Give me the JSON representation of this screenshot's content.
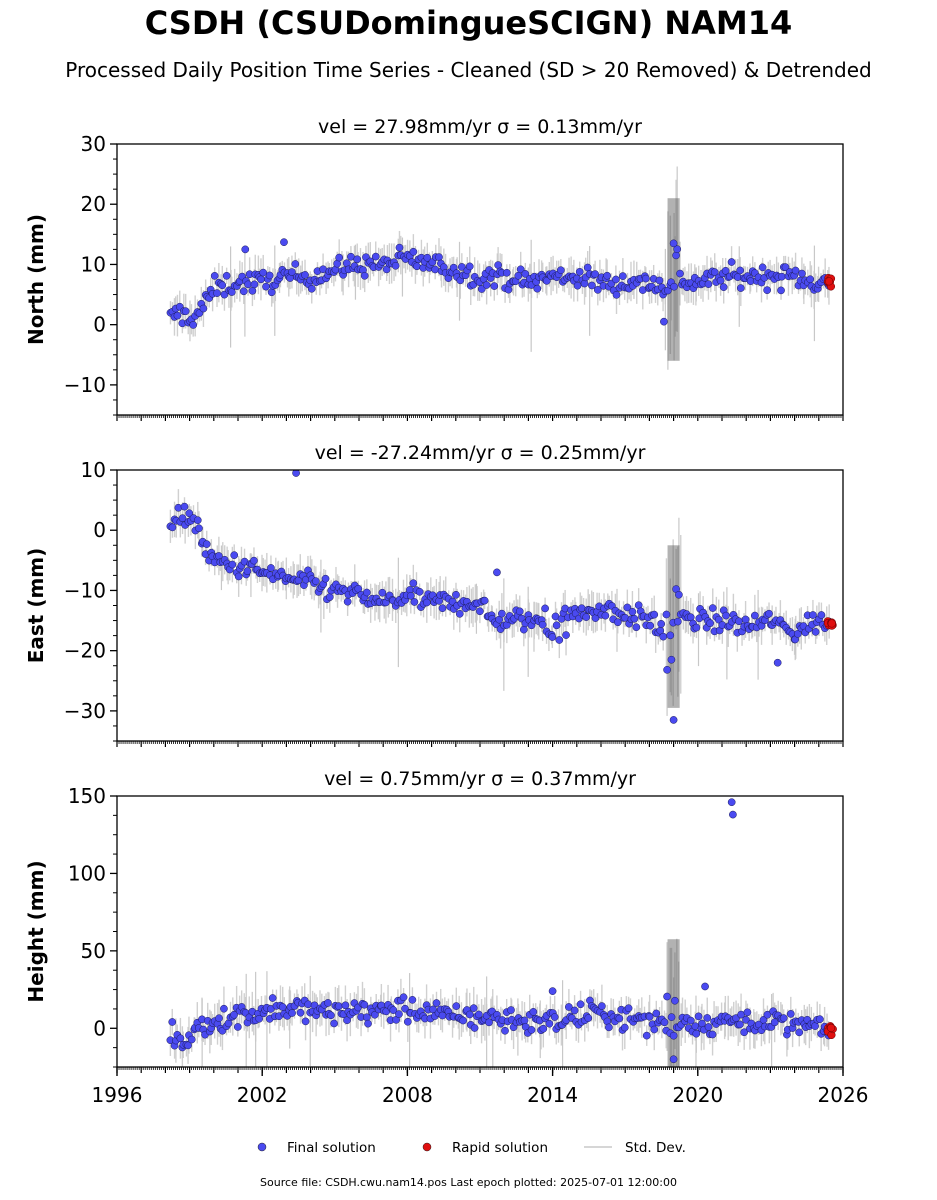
{
  "header": {
    "title": "CSDH (CSUDomingueSCIGN) NAM14",
    "subtitle": "Processed Daily Position Time Series - Cleaned (SD > 20 Removed) & Detrended"
  },
  "footer": {
    "source": "Source file: CSDH.cwu.nam14.pos  Last epoch plotted: 2025-07-01 12:00:00"
  },
  "legend": {
    "placement": "bottom-center",
    "items": [
      {
        "label": "Final solution",
        "color": "#4a4af0",
        "kind": "dot"
      },
      {
        "label": "Rapid solution",
        "color": "#e01010",
        "kind": "dot"
      },
      {
        "label": "Std. Dev.",
        "color": "#c8c8c8",
        "kind": "line"
      }
    ]
  },
  "chart_data": [
    {
      "type": "scatter",
      "title": "vel = 27.98mm/yr   σ = 0.13mm/yr",
      "ylabel": "North (mm)",
      "xlim": [
        1996,
        2026
      ],
      "ylim": [
        -15,
        30
      ],
      "yticks": [
        -10,
        0,
        10,
        20,
        30
      ],
      "xticks": [],
      "data_start": 1998.2,
      "data_end": 2025.5,
      "series": [
        {
          "name": "Final solution",
          "x": [
            1998.2,
            1998.6,
            1999.0,
            1999.4,
            2000.0,
            2001.0,
            2002.0,
            2003.0,
            2004.0,
            2005.0,
            2006.0,
            2007.0,
            2008.0,
            2009.0,
            2010.0,
            2011.0,
            2012.0,
            2013.0,
            2014.0,
            2015.0,
            2016.0,
            2017.0,
            2018.0,
            2018.9,
            2019.1,
            2019.5,
            2020.0,
            2021.0,
            2022.0,
            2023.0,
            2024.0,
            2025.0,
            2025.4
          ],
          "y": [
            1,
            2,
            1,
            2,
            6,
            7,
            7,
            8,
            8,
            9,
            10,
            10,
            11,
            10,
            9,
            8,
            8,
            7,
            8,
            8,
            7,
            7,
            7,
            6,
            9,
            7,
            7,
            8,
            8,
            8,
            8,
            7,
            6.5
          ]
        },
        {
          "name": "Rapid solution",
          "x": [
            2025.45,
            2025.5
          ],
          "y": [
            7.2,
            7.0
          ]
        }
      ],
      "outliers": [
        [
          2001.3,
          12.5
        ],
        [
          2002.9,
          13.7
        ],
        [
          2019.0,
          13.5
        ],
        [
          2018.6,
          0.5
        ]
      ]
    },
    {
      "type": "scatter",
      "title": "vel = -27.24mm/yr   σ = 0.25mm/yr",
      "ylabel": "East (mm)",
      "xlim": [
        1996,
        2026
      ],
      "ylim": [
        -35,
        10
      ],
      "yticks": [
        -30,
        -20,
        -10,
        0,
        10
      ],
      "xticks": [],
      "data_start": 1998.2,
      "data_end": 2025.5,
      "series": [
        {
          "name": "Final solution",
          "x": [
            1998.2,
            1998.6,
            1999.0,
            1999.4,
            1999.6,
            2000.0,
            2001.0,
            2002.0,
            2003.0,
            2004.0,
            2005.0,
            2006.0,
            2007.0,
            2008.0,
            2009.0,
            2010.0,
            2011.0,
            2011.5,
            2012.0,
            2013.0,
            2014.0,
            2015.0,
            2016.0,
            2017.0,
            2018.0,
            2018.9,
            2019.1,
            2019.5,
            2020.0,
            2021.0,
            2022.0,
            2023.0,
            2024.0,
            2025.0,
            2025.4
          ],
          "y": [
            1,
            2,
            2,
            1,
            -4,
            -5,
            -6,
            -7,
            -8,
            -9,
            -10,
            -11,
            -12,
            -11,
            -12,
            -12,
            -12,
            -15,
            -15,
            -15,
            -15,
            -14,
            -13,
            -14,
            -15,
            -18,
            -14,
            -15,
            -15,
            -15,
            -16,
            -15,
            -17,
            -15,
            -15.5
          ]
        },
        {
          "name": "Rapid solution",
          "x": [
            2025.45,
            2025.5
          ],
          "y": [
            -15.5,
            -15.8
          ]
        }
      ],
      "outliers": [
        [
          2003.4,
          9.5
        ],
        [
          2019.0,
          -31.5
        ],
        [
          2023.3,
          -22.0
        ],
        [
          2011.7,
          -7.0
        ]
      ]
    },
    {
      "type": "scatter",
      "title": "vel = 0.75mm/yr   σ = 0.37mm/yr",
      "ylabel": "Height (mm)",
      "xlim": [
        1996,
        2026
      ],
      "ylim": [
        -25,
        150
      ],
      "yticks": [
        0,
        50,
        100,
        150
      ],
      "xticks": [
        1996,
        2002,
        2008,
        2014,
        2020,
        2026
      ],
      "data_start": 1998.2,
      "data_end": 2025.5,
      "series": [
        {
          "name": "Final solution",
          "x": [
            1998.2,
            1998.8,
            1999.2,
            2000.0,
            2001.0,
            2002.0,
            2003.0,
            2004.0,
            2005.0,
            2006.0,
            2007.0,
            2008.0,
            2009.0,
            2010.0,
            2011.0,
            2012.0,
            2013.0,
            2014.0,
            2015.0,
            2016.0,
            2017.0,
            2018.0,
            2019.0,
            2020.0,
            2021.0,
            2022.0,
            2023.0,
            2024.0,
            2025.0,
            2025.4
          ],
          "y": [
            -5,
            -12,
            0,
            5,
            8,
            10,
            12,
            12,
            10,
            11,
            12,
            12,
            10,
            8,
            7,
            6,
            5,
            3,
            8,
            10,
            6,
            5,
            5,
            3,
            4,
            6,
            4,
            2,
            0,
            -2
          ]
        },
        {
          "name": "Rapid solution",
          "x": [
            2025.45,
            2025.5
          ],
          "y": [
            0,
            -2
          ]
        }
      ],
      "outliers": [
        [
          2021.4,
          146
        ],
        [
          2021.45,
          138
        ],
        [
          2020.3,
          27
        ],
        [
          2019.0,
          -20
        ],
        [
          2014.0,
          24
        ]
      ]
    }
  ]
}
